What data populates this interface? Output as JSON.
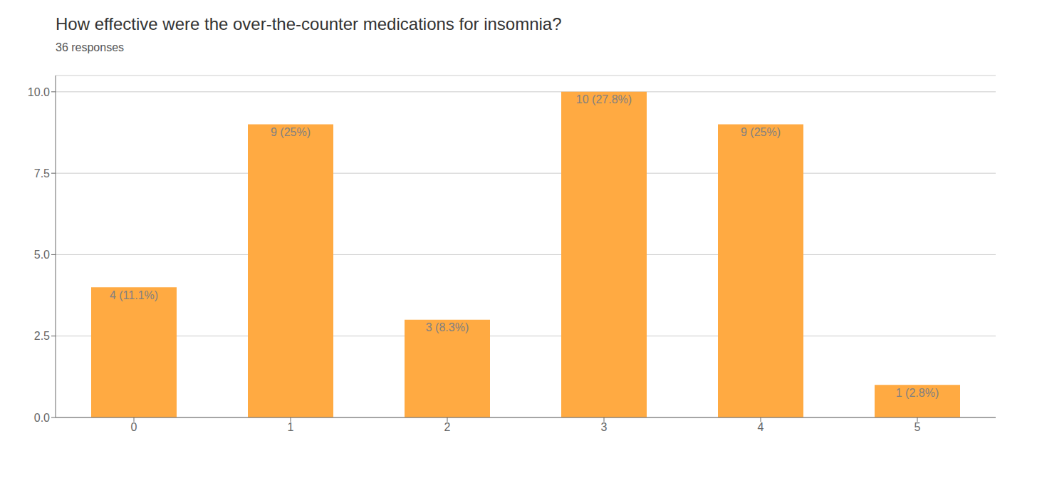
{
  "chart_data": {
    "type": "bar",
    "title": "How effective were the over-the-counter medications for insomnia?",
    "subtitle": "36 responses",
    "categories": [
      0,
      1,
      2,
      3,
      4,
      5
    ],
    "values": [
      4,
      9,
      3,
      10,
      9,
      1
    ],
    "value_labels": [
      "4 (11.1%)",
      "9 (25%)",
      "3 (8.3%)",
      "10 (27.8%)",
      "9 (25%)",
      "1 (2.8%)"
    ],
    "data_labels": true,
    "color": "#FFAA42",
    "ylim": [
      0,
      10.5
    ],
    "yticks": [
      {
        "value": 0,
        "label": "0.0"
      },
      2.5,
      {
        "value": 5,
        "label": "5.0"
      },
      7.5,
      {
        "value": 10,
        "label": "10.0"
      }
    ],
    "grid": true
  }
}
